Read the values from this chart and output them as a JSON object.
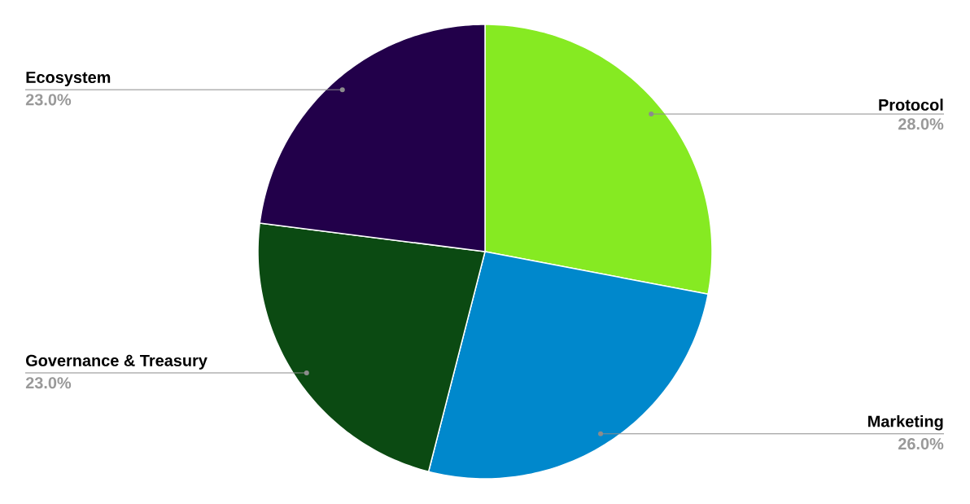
{
  "chart_data": {
    "type": "pie",
    "categories": [
      "Protocol",
      "Marketing",
      "Governance & Treasury",
      "Ecosystem"
    ],
    "values": [
      28,
      26,
      23,
      23
    ],
    "colors": [
      "#86ea22",
      "#0088cc",
      "#0b4a12",
      "#22004a"
    ],
    "value_labels": [
      "28.0%",
      "26.0%",
      "23.0%",
      "23.0%"
    ]
  }
}
